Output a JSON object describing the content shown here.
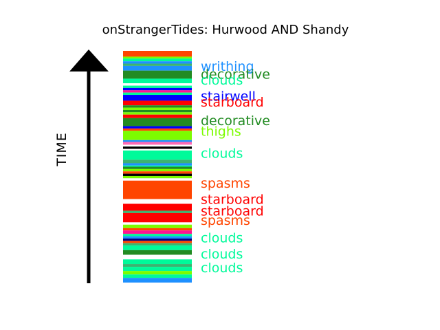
{
  "chart_data": {
    "type": "bar",
    "title": "onStrangerTides: Hurwood AND Shandy",
    "ylabel": "TIME",
    "stripes": [
      {
        "start": 0.0,
        "end": 0.025,
        "color": "#FF4500"
      },
      {
        "start": 0.025,
        "end": 0.033,
        "color": "#7CFC00"
      },
      {
        "start": 0.033,
        "end": 0.045,
        "color": "#00FA9A"
      },
      {
        "start": 0.045,
        "end": 0.055,
        "color": "#1E90FF"
      },
      {
        "start": 0.055,
        "end": 0.065,
        "color": "#3CB371"
      },
      {
        "start": 0.065,
        "end": 0.085,
        "color": "#1E90FF"
      },
      {
        "start": 0.085,
        "end": 0.12,
        "color": "#228B22"
      },
      {
        "start": 0.12,
        "end": 0.14,
        "color": "#00FA9A"
      },
      {
        "start": 0.14,
        "end": 0.15,
        "color": "#FFFFFF"
      },
      {
        "start": 0.15,
        "end": 0.16,
        "color": "#00FA9A"
      },
      {
        "start": 0.16,
        "end": 0.17,
        "color": "#0000FF"
      },
      {
        "start": 0.17,
        "end": 0.18,
        "color": "#FF1493"
      },
      {
        "start": 0.18,
        "end": 0.19,
        "color": "#00FA9A"
      },
      {
        "start": 0.19,
        "end": 0.215,
        "color": "#0000FF"
      },
      {
        "start": 0.215,
        "end": 0.235,
        "color": "#FF0000"
      },
      {
        "start": 0.235,
        "end": 0.245,
        "color": "#228B22"
      },
      {
        "start": 0.245,
        "end": 0.255,
        "color": "#7CFC00"
      },
      {
        "start": 0.255,
        "end": 0.265,
        "color": "#228B22"
      },
      {
        "start": 0.265,
        "end": 0.275,
        "color": "#7CFC00"
      },
      {
        "start": 0.275,
        "end": 0.29,
        "color": "#FF0000"
      },
      {
        "start": 0.29,
        "end": 0.325,
        "color": "#228B22"
      },
      {
        "start": 0.325,
        "end": 0.335,
        "color": "#0000FF"
      },
      {
        "start": 0.335,
        "end": 0.345,
        "color": "#FF4500"
      },
      {
        "start": 0.345,
        "end": 0.385,
        "color": "#7CFC00"
      },
      {
        "start": 0.385,
        "end": 0.393,
        "color": "#1E90FF"
      },
      {
        "start": 0.393,
        "end": 0.405,
        "color": "#FF69B4"
      },
      {
        "start": 0.405,
        "end": 0.413,
        "color": "#FFFFFF"
      },
      {
        "start": 0.413,
        "end": 0.423,
        "color": "#000000"
      },
      {
        "start": 0.423,
        "end": 0.43,
        "color": "#FFFFFF"
      },
      {
        "start": 0.43,
        "end": 0.47,
        "color": "#00FA9A"
      },
      {
        "start": 0.47,
        "end": 0.485,
        "color": "#3CB371"
      },
      {
        "start": 0.485,
        "end": 0.495,
        "color": "#1E90FF"
      },
      {
        "start": 0.495,
        "end": 0.5,
        "color": "#00FA9A"
      },
      {
        "start": 0.5,
        "end": 0.51,
        "color": "#228B22"
      },
      {
        "start": 0.51,
        "end": 0.52,
        "color": "#7CFC00"
      },
      {
        "start": 0.52,
        "end": 0.53,
        "color": "#FF4500"
      },
      {
        "start": 0.53,
        "end": 0.54,
        "color": "#000000"
      },
      {
        "start": 0.54,
        "end": 0.55,
        "color": "#7CFC00"
      },
      {
        "start": 0.55,
        "end": 0.56,
        "color": "#FFFFFF"
      },
      {
        "start": 0.56,
        "end": 0.64,
        "color": "#FF4500"
      },
      {
        "start": 0.64,
        "end": 0.66,
        "color": "#FFFFFF"
      },
      {
        "start": 0.66,
        "end": 0.69,
        "color": "#FF0000"
      },
      {
        "start": 0.69,
        "end": 0.7,
        "color": "#3CB371"
      },
      {
        "start": 0.7,
        "end": 0.74,
        "color": "#FF0000"
      },
      {
        "start": 0.74,
        "end": 0.75,
        "color": "#FFFFFF"
      },
      {
        "start": 0.75,
        "end": 0.765,
        "color": "#7CFC00"
      },
      {
        "start": 0.765,
        "end": 0.775,
        "color": "#FF4500"
      },
      {
        "start": 0.775,
        "end": 0.79,
        "color": "#FF1493"
      },
      {
        "start": 0.79,
        "end": 0.8,
        "color": "#00FA9A"
      },
      {
        "start": 0.8,
        "end": 0.81,
        "color": "#1E90FF"
      },
      {
        "start": 0.81,
        "end": 0.82,
        "color": "#000080"
      },
      {
        "start": 0.82,
        "end": 0.83,
        "color": "#FF4500"
      },
      {
        "start": 0.83,
        "end": 0.84,
        "color": "#3CB371"
      },
      {
        "start": 0.84,
        "end": 0.86,
        "color": "#00FA9A"
      },
      {
        "start": 0.86,
        "end": 0.88,
        "color": "#228B22"
      },
      {
        "start": 0.88,
        "end": 0.9,
        "color": "#FFFFFF"
      },
      {
        "start": 0.9,
        "end": 0.92,
        "color": "#00FA9A"
      },
      {
        "start": 0.92,
        "end": 0.932,
        "color": "#3CB371"
      },
      {
        "start": 0.932,
        "end": 0.95,
        "color": "#00FA9A"
      },
      {
        "start": 0.95,
        "end": 0.965,
        "color": "#7CFC00"
      },
      {
        "start": 0.965,
        "end": 0.98,
        "color": "#00FA9A"
      },
      {
        "start": 0.98,
        "end": 1.0,
        "color": "#1E90FF"
      }
    ],
    "words": [
      {
        "text": "writhing",
        "color": "#1E90FF",
        "pos": 0.065
      },
      {
        "text": "decorative",
        "color": "#228B22",
        "pos": 0.1
      },
      {
        "text": "clouds",
        "color": "#00FA9A",
        "pos": 0.125
      },
      {
        "text": "stairwell",
        "color": "#0000FF",
        "pos": 0.195
      },
      {
        "text": "starboard",
        "color": "#FF0000",
        "pos": 0.22
      },
      {
        "text": "decorative",
        "color": "#228B22",
        "pos": 0.3
      },
      {
        "text": "thighs",
        "color": "#7CFC00",
        "pos": 0.345
      },
      {
        "text": "clouds",
        "color": "#00FA9A",
        "pos": 0.44
      },
      {
        "text": "spasms",
        "color": "#FF4500",
        "pos": 0.57
      },
      {
        "text": "starboard",
        "color": "#FF0000",
        "pos": 0.64
      },
      {
        "text": "starboard",
        "color": "#FF0000",
        "pos": 0.69
      },
      {
        "text": "spasms",
        "color": "#FF4500",
        "pos": 0.73
      },
      {
        "text": "clouds",
        "color": "#00FA9A",
        "pos": 0.805
      },
      {
        "text": "clouds",
        "color": "#00FA9A",
        "pos": 0.875
      },
      {
        "text": "clouds",
        "color": "#00FA9A",
        "pos": 0.935
      }
    ]
  }
}
